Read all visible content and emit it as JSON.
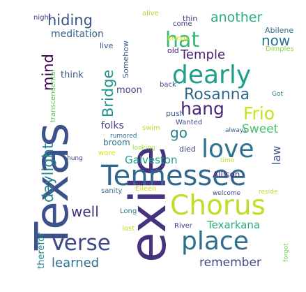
{
  "word_cloud": {
    "words": [
      {
        "text": "Texas",
        "color": "#3b528b"
      },
      {
        "text": "exile",
        "color": "#46327e"
      },
      {
        "text": "Tennessee",
        "color": "#31688e"
      },
      {
        "text": "Chorus",
        "color": "#bddf26"
      },
      {
        "text": "dearly",
        "color": "#1f9e89"
      },
      {
        "text": "love",
        "color": "#2c728e"
      },
      {
        "text": "hat",
        "color": "#35b779"
      },
      {
        "text": "place",
        "color": "#2d708e"
      },
      {
        "text": "Verse",
        "color": "#3e4989"
      },
      {
        "text": "hang",
        "color": "#482878"
      },
      {
        "text": "Frio",
        "color": "#c8e020"
      },
      {
        "text": "Rosanna",
        "color": "#31688e"
      },
      {
        "text": "daylight",
        "color": "#25858e"
      },
      {
        "text": "mind",
        "color": "#440154"
      },
      {
        "text": "Bridge",
        "color": "#21918c"
      },
      {
        "text": "hiding",
        "color": "#3b528b"
      },
      {
        "text": "another",
        "color": "#29af7f"
      },
      {
        "text": "now",
        "color": "#2c728e"
      },
      {
        "text": "Temple",
        "color": "#482173"
      },
      {
        "text": "Sweet",
        "color": "#4ac16d"
      },
      {
        "text": "go",
        "color": "#26828e"
      },
      {
        "text": "law",
        "color": "#3b528b"
      },
      {
        "text": "Galveston",
        "color": "#1fa088"
      },
      {
        "text": "well",
        "color": "#46327e"
      },
      {
        "text": "learned",
        "color": "#2c728e"
      },
      {
        "text": "remember",
        "color": "#3e4a89"
      },
      {
        "text": "Texarkana",
        "color": "#2ab07f"
      },
      {
        "text": "meditation",
        "color": "#33638d"
      },
      {
        "text": "think",
        "color": "#39568c"
      },
      {
        "text": "moon",
        "color": "#3f4788"
      },
      {
        "text": "folks",
        "color": "#433e85"
      },
      {
        "text": "therefor",
        "color": "#24868e"
      },
      {
        "text": "night",
        "color": "#414487"
      },
      {
        "text": "alive",
        "color": "#addc30"
      },
      {
        "text": "thin",
        "color": "#443983"
      },
      {
        "text": "come",
        "color": "#404387"
      },
      {
        "text": "Abilene",
        "color": "#2f6c8e"
      },
      {
        "text": "brings",
        "color": "#d8e219"
      },
      {
        "text": "old",
        "color": "#482475"
      },
      {
        "text": "Dimples",
        "color": "#90d743"
      },
      {
        "text": "live",
        "color": "#3b528b"
      },
      {
        "text": "Somehow",
        "color": "#355f8d"
      },
      {
        "text": "transcendental",
        "color": "#5ec962"
      },
      {
        "text": "back",
        "color": "#3f4788"
      },
      {
        "text": "Got",
        "color": "#287d8e"
      },
      {
        "text": "push",
        "color": "#39568c"
      },
      {
        "text": "Wanted",
        "color": "#3b528b"
      },
      {
        "text": "always",
        "color": "#33638d"
      },
      {
        "text": "rumored",
        "color": "#2c728e"
      },
      {
        "text": "swim",
        "color": "#b5de2b"
      },
      {
        "text": "broom",
        "color": "#2a788e"
      },
      {
        "text": "died",
        "color": "#3e4989"
      },
      {
        "text": "wore",
        "color": "#d8e219"
      },
      {
        "text": "looking",
        "color": "#a0da39"
      },
      {
        "text": "time",
        "color": "#c2df23"
      },
      {
        "text": "Allison",
        "color": "#46307e"
      },
      {
        "text": "hung",
        "color": "#414487"
      },
      {
        "text": "sanity",
        "color": "#2c728e"
      },
      {
        "text": "Eileen",
        "color": "#cae11f"
      },
      {
        "text": "welcome",
        "color": "#3e4a89"
      },
      {
        "text": "reside",
        "color": "#b5de2b"
      },
      {
        "text": "Long",
        "color": "#2a788e"
      },
      {
        "text": "River",
        "color": "#3f4788"
      },
      {
        "text": "lost",
        "color": "#c0df25"
      },
      {
        "text": "forgot",
        "color": "#70cf57"
      }
    ]
  }
}
